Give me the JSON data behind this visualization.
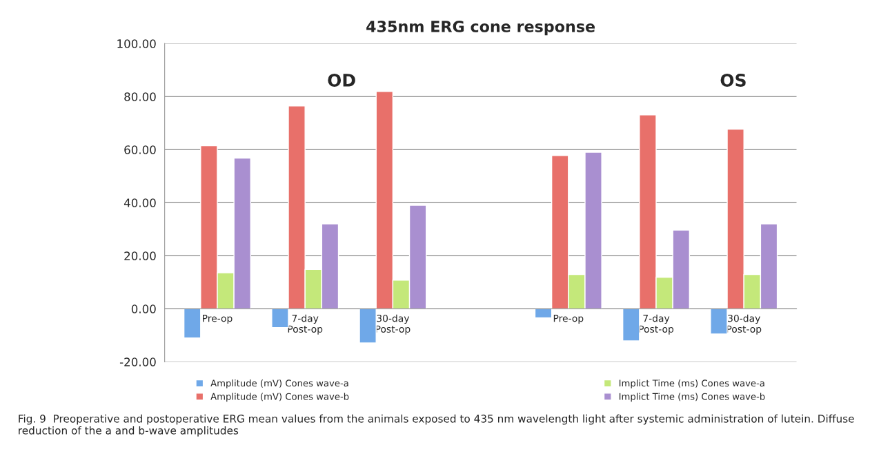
{
  "chart_data": {
    "type": "bar",
    "title": "435nm ERG cone response",
    "categories": [
      "Pre-op",
      "7-day\nPost-op",
      "30-day\nPost-op",
      null,
      "Pre-op",
      "7-day\nPost-op",
      "30-day\nPost-op"
    ],
    "series": [
      {
        "name": "Amplitude (mV) Cones wave-a",
        "color": "#6fa8e8",
        "values": [
          -11.0,
          -7.1,
          -12.9,
          null,
          -3.4,
          -12.1,
          -9.5
        ]
      },
      {
        "name": "Amplitude (mV) Cones wave-b",
        "color": "#e8706a",
        "values": [
          61.5,
          76.5,
          81.9,
          null,
          57.8,
          73.1,
          67.7
        ]
      },
      {
        "name": "Implict Time (ms) Cones wave-a",
        "color": "#c4e87a",
        "values": [
          13.6,
          14.8,
          10.8,
          null,
          12.9,
          11.9,
          12.9
        ]
      },
      {
        "name": "Implict Time (ms) Cones wave-b",
        "color": "#a98fd0",
        "values": [
          56.8,
          32.0,
          39.0,
          null,
          59.0,
          29.7,
          32.0
        ]
      }
    ],
    "ylim": [
      -20,
      100
    ],
    "yticks": [
      {
        "value": -20,
        "label": "-20.00"
      },
      {
        "value": 0,
        "label": "0.00"
      },
      {
        "value": 20,
        "label": "20.00"
      },
      {
        "value": 40,
        "label": "40.00"
      },
      {
        "value": 60,
        "label": "60.00"
      },
      {
        "value": 80,
        "label": "80.00"
      },
      {
        "value": 100,
        "label": "100.00"
      }
    ],
    "grid": "y",
    "legend": "bottom",
    "annotations": [
      "OD",
      "OS",
      "Fig. 9  Preoperative and postoperative ERG mean values from the animals exposed to 435 nm wavelength light after systemic administration of lutein. Diffuse reduction of the a and b-wave amplitudes"
    ]
  }
}
